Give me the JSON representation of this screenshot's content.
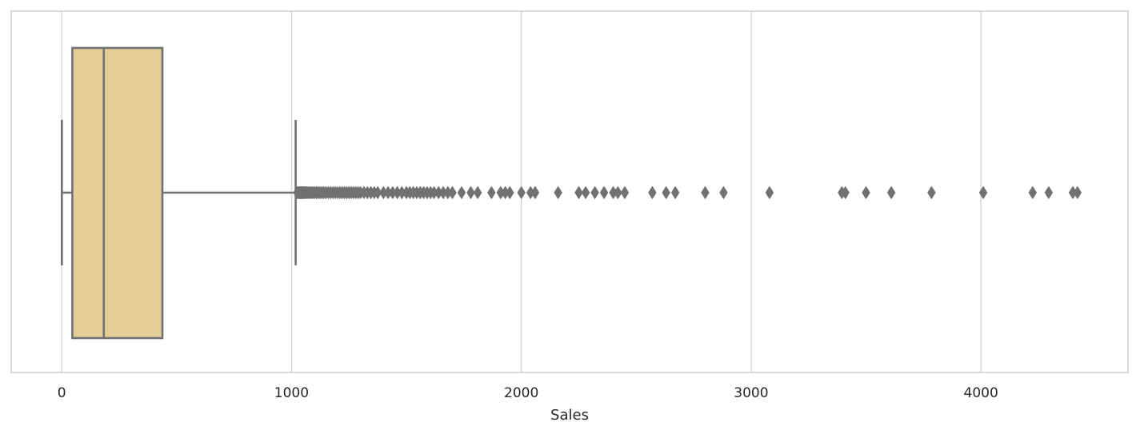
{
  "chart_data": {
    "type": "box",
    "orientation": "horizontal",
    "xlabel": "Sales",
    "ylabel": "",
    "title": "",
    "xlim": [
      -220,
      4640
    ],
    "xticks": [
      0,
      1000,
      2000,
      3000,
      4000
    ],
    "xtick_labels": [
      "0",
      "1000",
      "2000",
      "3000",
      "4000"
    ],
    "grid": "vertical",
    "box": {
      "whisker_low": 0.4,
      "q1": 46,
      "median": 183,
      "q3": 438,
      "whisker_high": 1018
    },
    "outliers": [
      1025,
      1030,
      1034,
      1038,
      1042,
      1046,
      1050,
      1055,
      1060,
      1066,
      1072,
      1078,
      1085,
      1092,
      1100,
      1108,
      1116,
      1124,
      1132,
      1140,
      1150,
      1160,
      1170,
      1180,
      1190,
      1200,
      1210,
      1220,
      1230,
      1240,
      1250,
      1260,
      1270,
      1280,
      1290,
      1300,
      1315,
      1330,
      1345,
      1360,
      1375,
      1400,
      1420,
      1440,
      1460,
      1480,
      1500,
      1515,
      1530,
      1545,
      1560,
      1575,
      1590,
      1605,
      1620,
      1640,
      1660,
      1680,
      1700,
      1740,
      1780,
      1810,
      1870,
      1910,
      1930,
      1950,
      2000,
      2040,
      2060,
      2160,
      2250,
      2280,
      2320,
      2360,
      2400,
      2420,
      2450,
      2570,
      2630,
      2670,
      2800,
      2880,
      3080,
      3395,
      3410,
      3500,
      3610,
      3785,
      4010,
      4225,
      4295,
      4400,
      4420
    ],
    "colors": {
      "box_fill": "#e5cd97",
      "lines": "#717171",
      "grid": "#d5d5d5",
      "frame": "#cccccc"
    }
  }
}
